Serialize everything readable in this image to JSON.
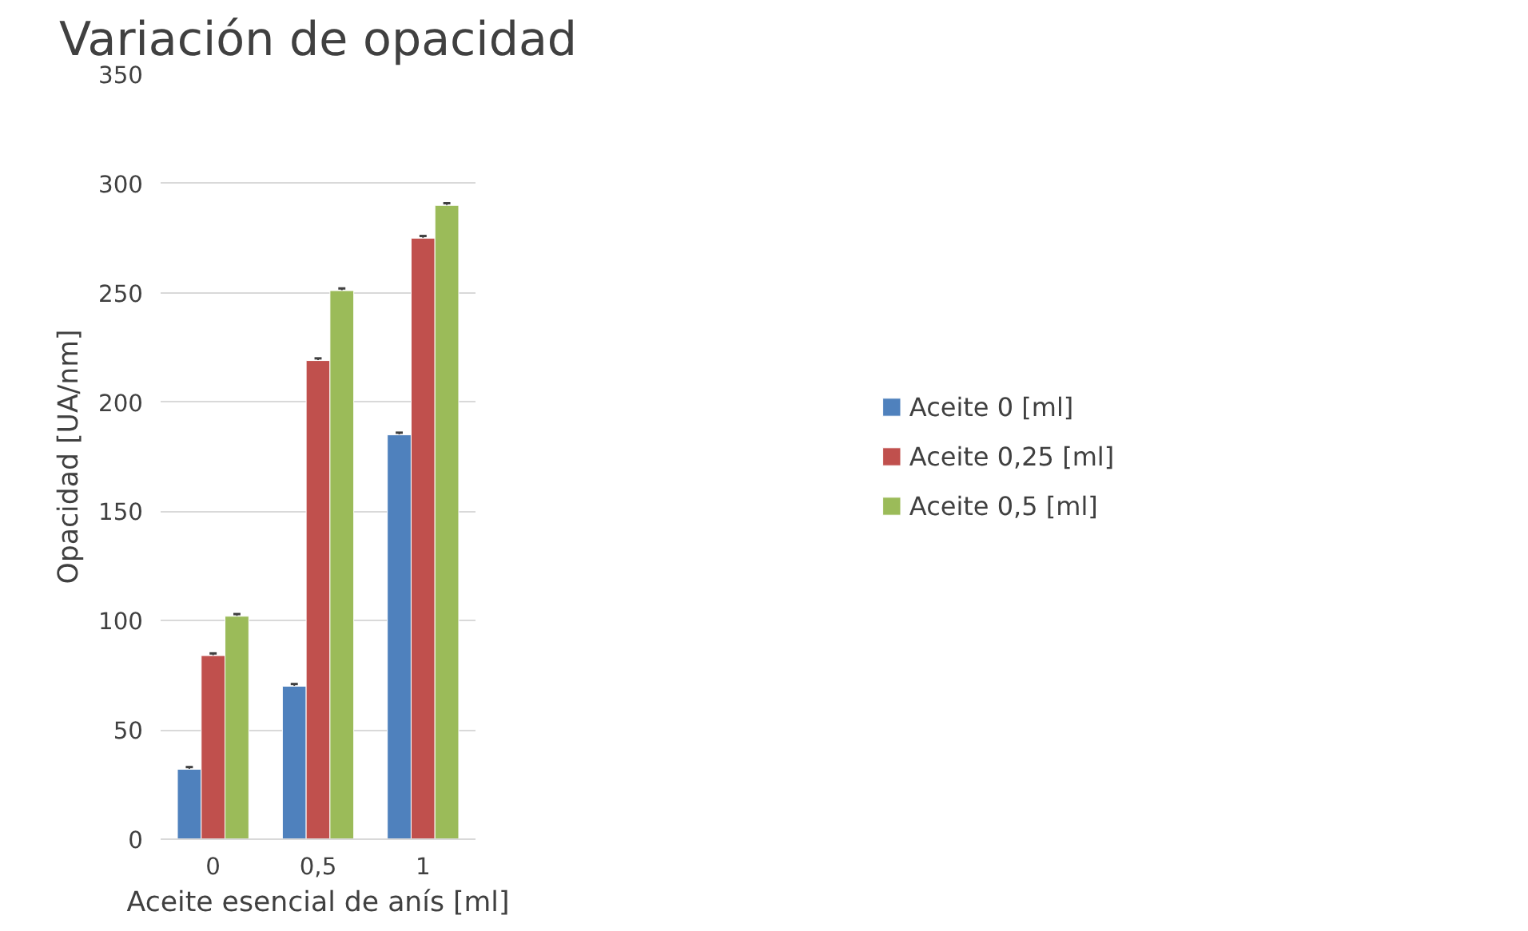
{
  "chart_data": {
    "type": "bar",
    "title": "Variación de opacidad",
    "xlabel": "Aceite esencial de anís [ml]",
    "ylabel": "Opacidad [UA/nm]",
    "categories": [
      "0",
      "0,5",
      "1"
    ],
    "series": [
      {
        "name": "Aceite 0 [ml]",
        "color": "#4f81bd",
        "values": [
          32,
          70,
          185
        ],
        "errors": [
          1,
          1,
          1
        ]
      },
      {
        "name": "Aceite 0,25 [ml]",
        "color": "#c0504d",
        "values": [
          84,
          219,
          275
        ],
        "errors": [
          1,
          1,
          1
        ]
      },
      {
        "name": "Aceite 0,5 [ml]",
        "color": "#9bbb59",
        "values": [
          102,
          251,
          290
        ],
        "errors": [
          1,
          1,
          1
        ]
      }
    ],
    "ylim": [
      0,
      350
    ],
    "yticks": [
      0,
      50,
      100,
      150,
      200,
      250,
      300,
      350
    ],
    "grid": "y",
    "legend": "right"
  }
}
